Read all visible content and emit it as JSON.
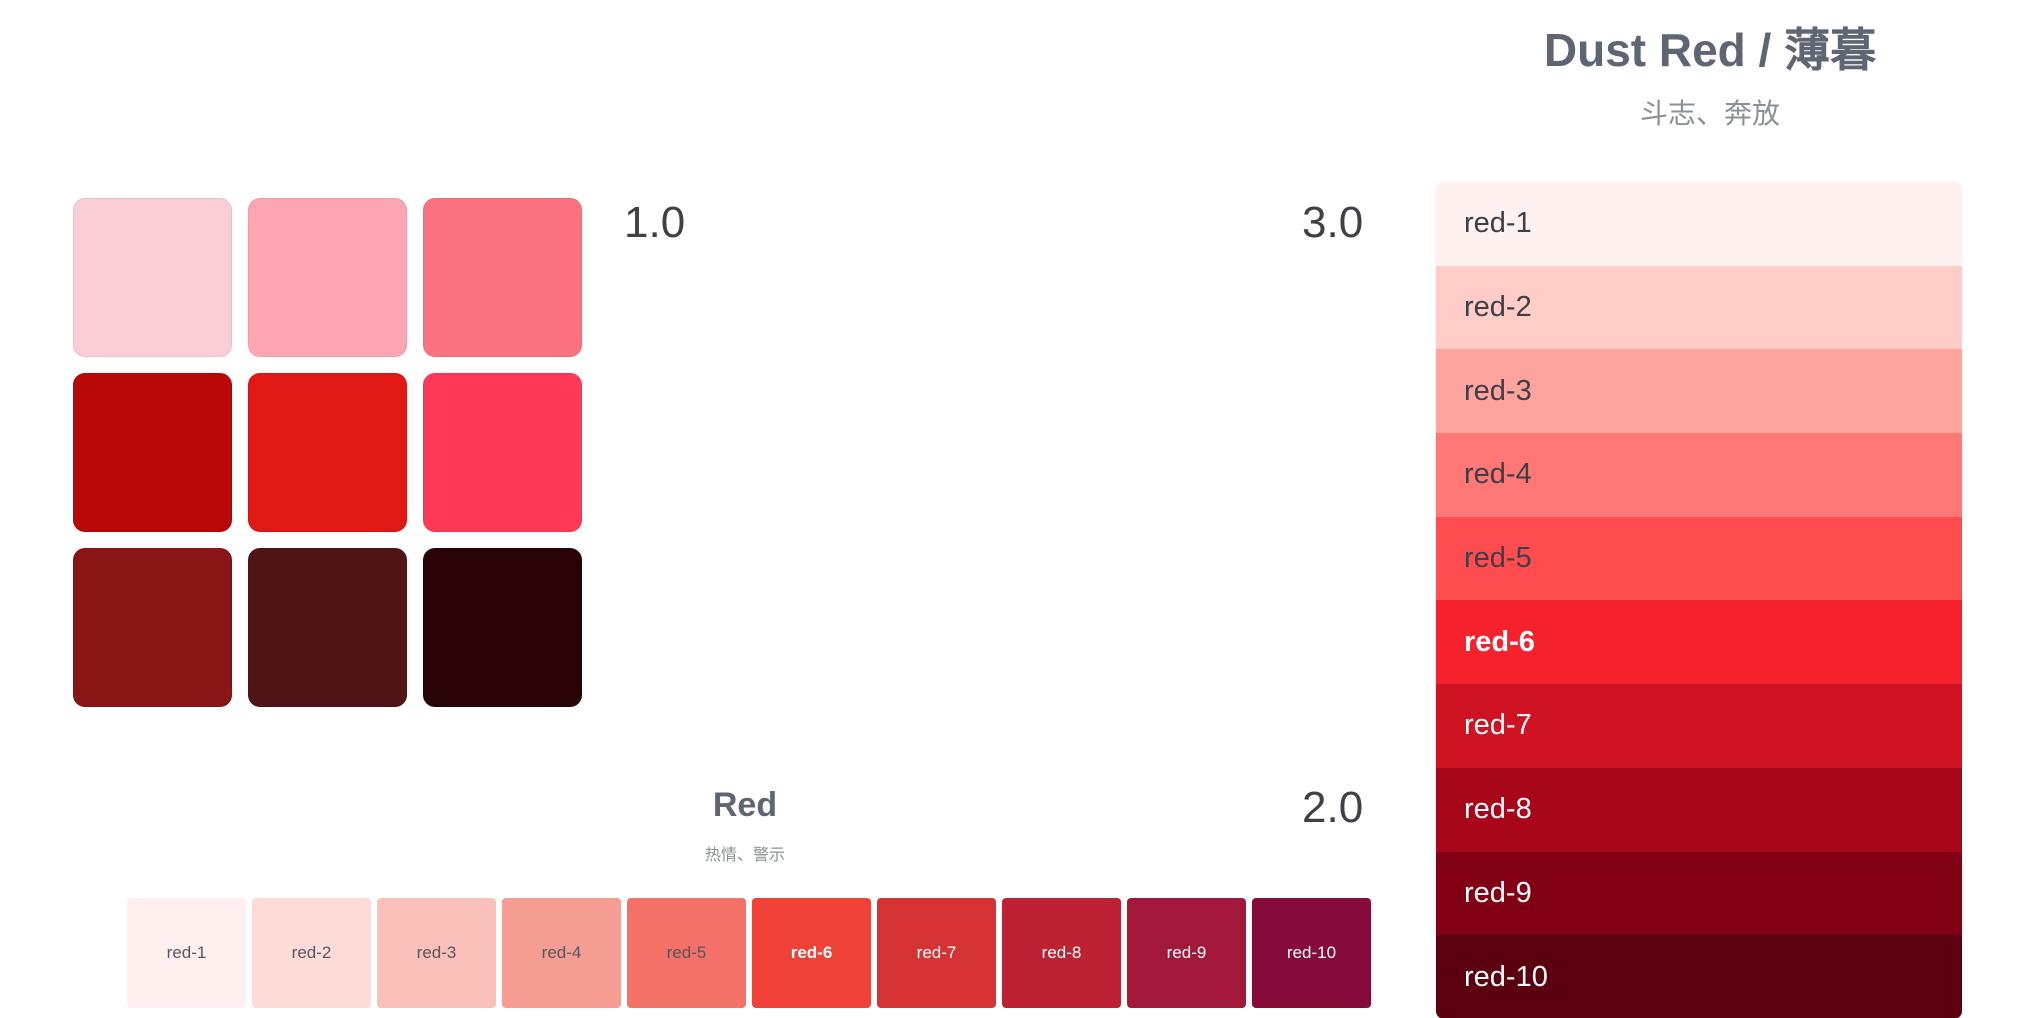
{
  "versions": {
    "v1": "1.0",
    "v2": "2.0",
    "v3": "3.0"
  },
  "grid_colors": [
    "#f9cdd6",
    "#fea5b3",
    "#fc7280",
    "#b90807",
    "#e01816",
    "#ff3857",
    "#891517",
    "#511416",
    "#290305"
  ],
  "red": {
    "title": "Red",
    "subtitle": "热情、警示",
    "swatches": [
      {
        "label": "red-1",
        "color": "#fff0ef"
      },
      {
        "label": "red-2",
        "color": "#fddcd8"
      },
      {
        "label": "red-3",
        "color": "#f8c0b9"
      },
      {
        "label": "red-4",
        "color": "#f59c93"
      },
      {
        "label": "red-5",
        "color": "#f37167"
      },
      {
        "label": "red-6",
        "color": "#ef4137"
      },
      {
        "label": "red-7",
        "color": "#d53234"
      },
      {
        "label": "red-8",
        "color": "#bd2234"
      },
      {
        "label": "red-9",
        "color": "#a2173a"
      },
      {
        "label": "red-10",
        "color": "#860a3a"
      }
    ]
  },
  "dust_red": {
    "title": "Dust Red / 薄暮",
    "subtitle": "斗志、奔放",
    "rows": [
      {
        "label": "red-1",
        "color": "#fff1f0"
      },
      {
        "label": "red-2",
        "color": "#ffccc7"
      },
      {
        "label": "red-3",
        "color": "#ffa39e"
      },
      {
        "label": "red-4",
        "color": "#ff7875"
      },
      {
        "label": "red-5",
        "color": "#ff4d4f"
      },
      {
        "label": "red-6",
        "color": "#f5222d"
      },
      {
        "label": "red-7",
        "color": "#cf1322"
      },
      {
        "label": "red-8",
        "color": "#a8071a"
      },
      {
        "label": "red-9",
        "color": "#820014"
      },
      {
        "label": "red-10",
        "color": "#5c0011"
      }
    ]
  }
}
